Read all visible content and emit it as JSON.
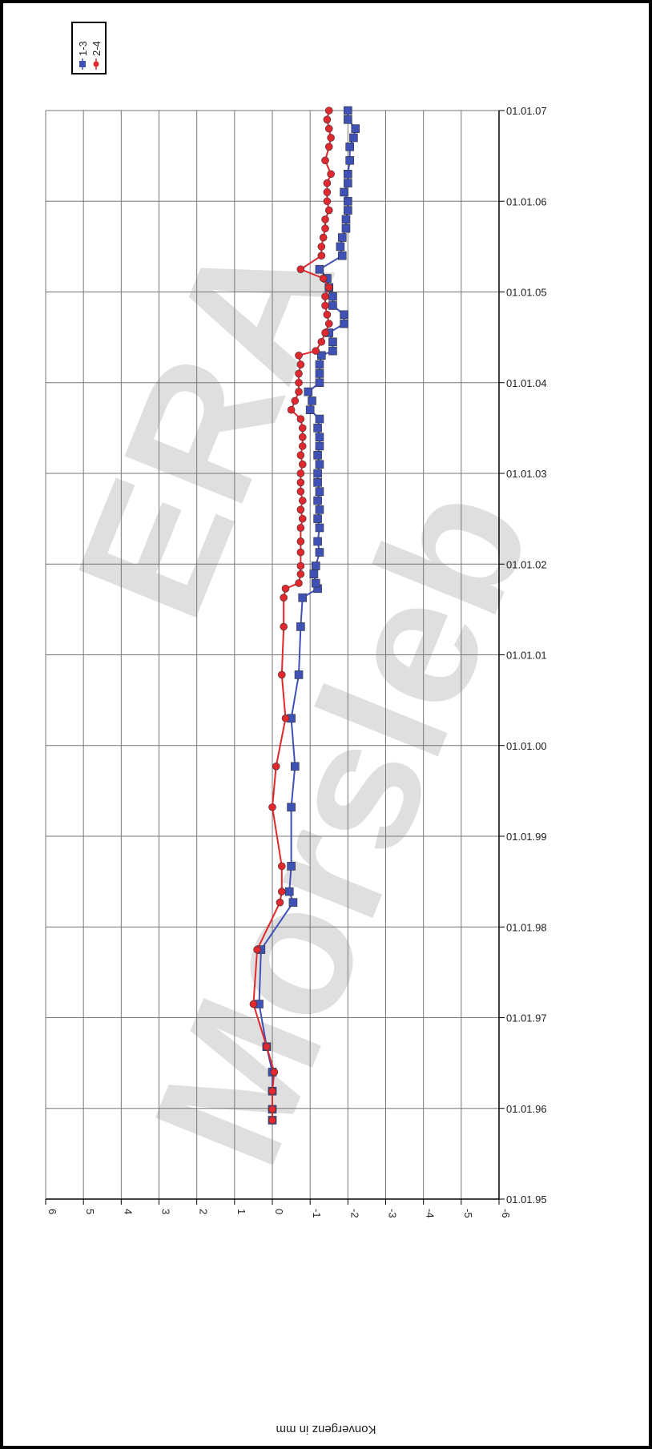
{
  "chart_data": {
    "type": "line",
    "axis_label": "Konvergenz in mm",
    "annotations": [
      "ERA",
      "Morsleb"
    ],
    "x": [
      1995.87,
      1995.99,
      1996.19,
      1996.4,
      1996.68,
      1997.15,
      1997.75,
      1998.27,
      1998.39,
      1998.67,
      1999.32,
      1999.77,
      2000.3,
      2000.78,
      2001.31,
      2001.63,
      2001.73,
      2001.79,
      2001.89,
      2001.98,
      2002.13,
      2002.25,
      2002.4,
      2002.5,
      2002.6,
      2002.7,
      2002.8,
      2002.9,
      2003.0,
      2003.1,
      2003.2,
      2003.3,
      2003.4,
      2003.5,
      2003.6,
      2003.7,
      2003.8,
      2003.9,
      2004.0,
      2004.1,
      2004.2,
      2004.3,
      2004.35,
      2004.45,
      2004.55,
      2004.65,
      2004.75,
      2004.85,
      2004.95,
      2005.05,
      2005.15,
      2005.25,
      2005.4,
      2005.5,
      2005.6,
      2005.7,
      2005.8,
      2005.9,
      2006.0,
      2006.1,
      2006.2,
      2006.3,
      2006.45,
      2006.6,
      2006.7,
      2006.8,
      2006.9,
      2007.0
    ],
    "series": [
      {
        "name": "1-3",
        "color": "#3f51b5",
        "marker": "square",
        "values": [
          0,
          0,
          0,
          0,
          0.15,
          0.35,
          0.3,
          -0.55,
          -0.45,
          -0.5,
          -0.5,
          -0.6,
          -0.5,
          -0.7,
          -0.75,
          -0.8,
          -1.2,
          -1.15,
          -1.1,
          -1.15,
          -1.25,
          -1.2,
          -1.25,
          -1.2,
          -1.25,
          -1.2,
          -1.25,
          -1.2,
          -1.2,
          -1.25,
          -1.2,
          -1.25,
          -1.25,
          -1.2,
          -1.25,
          -1.0,
          -1.05,
          -0.95,
          -1.25,
          -1.25,
          -1.25,
          -1.3,
          -1.6,
          -1.6,
          -1.5,
          -1.9,
          -1.9,
          -1.6,
          -1.6,
          -1.5,
          -1.45,
          -1.25,
          -1.85,
          -1.8,
          -1.85,
          -1.95,
          -1.95,
          -2.0,
          -2.0,
          -1.9,
          -2.0,
          -2.0,
          -2.05,
          -2.05,
          -2.15,
          -2.2,
          -2.0,
          -2.0
        ]
      },
      {
        "name": "2-4",
        "color": "#e0282e",
        "marker": "circle",
        "values": [
          0,
          0,
          0,
          -0.05,
          0.15,
          0.5,
          0.4,
          -0.2,
          -0.25,
          -0.25,
          0,
          -0.1,
          -0.35,
          -0.25,
          -0.3,
          -0.3,
          -0.35,
          -0.7,
          -0.75,
          -0.75,
          -0.75,
          -0.75,
          -0.75,
          -0.8,
          -0.75,
          -0.8,
          -0.75,
          -0.75,
          -0.75,
          -0.8,
          -0.75,
          -0.8,
          -0.8,
          -0.8,
          -0.75,
          -0.5,
          -0.6,
          -0.7,
          -0.7,
          -0.7,
          -0.75,
          -0.7,
          -1.15,
          -1.3,
          -1.4,
          -1.5,
          -1.45,
          -1.4,
          -1.4,
          -1.5,
          -1.35,
          -0.75,
          -1.3,
          -1.3,
          -1.35,
          -1.4,
          -1.4,
          -1.5,
          -1.45,
          -1.45,
          -1.45,
          -1.55,
          -1.4,
          -1.5,
          -1.55,
          -1.5,
          -1.45,
          -1.5
        ]
      }
    ],
    "xlim": [
      1995,
      2007
    ],
    "xticks": [
      {
        "value": 1995,
        "label": "01.01.95"
      },
      {
        "value": 1996,
        "label": "01.01.96"
      },
      {
        "value": 1997,
        "label": "01.01.97"
      },
      {
        "value": 1998,
        "label": "01.01.98"
      },
      {
        "value": 1999,
        "label": "01.01.99"
      },
      {
        "value": 2000,
        "label": "01.01.00"
      },
      {
        "value": 2001,
        "label": "01.01.01"
      },
      {
        "value": 2002,
        "label": "01.01.02"
      },
      {
        "value": 2003,
        "label": "01.01.03"
      },
      {
        "value": 2004,
        "label": "01.01.04"
      },
      {
        "value": 2005,
        "label": "01.01.05"
      },
      {
        "value": 2006,
        "label": "01.01.06"
      },
      {
        "value": 2007,
        "label": "01.01.07"
      }
    ],
    "ylim": [
      6,
      -6
    ],
    "yticks": [
      6,
      5,
      4,
      3,
      2,
      1,
      0,
      -1,
      -2,
      -3,
      -4,
      -5,
      -6
    ],
    "grid": true
  }
}
